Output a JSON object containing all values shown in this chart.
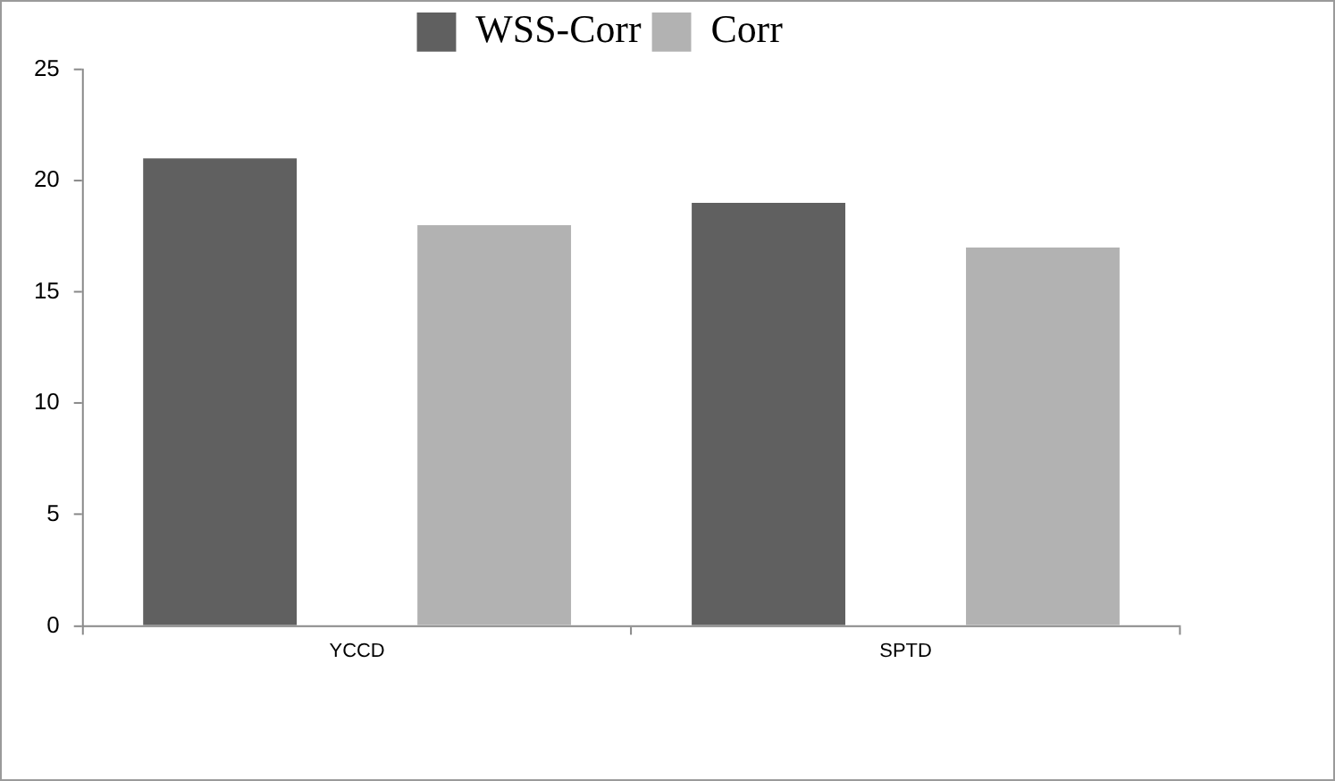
{
  "chart_data": {
    "type": "bar",
    "categories": [
      "YCCD",
      "SPTD"
    ],
    "series": [
      {
        "name": "WSS-Corr",
        "color": "#606060",
        "values": [
          21,
          19
        ]
      },
      {
        "name": "Corr",
        "color": "#b2b2b2",
        "values": [
          18,
          17
        ]
      }
    ],
    "ylim": [
      0,
      25
    ],
    "yticks": [
      0,
      5,
      10,
      15,
      20,
      25
    ],
    "grid": false,
    "legend": "top"
  }
}
